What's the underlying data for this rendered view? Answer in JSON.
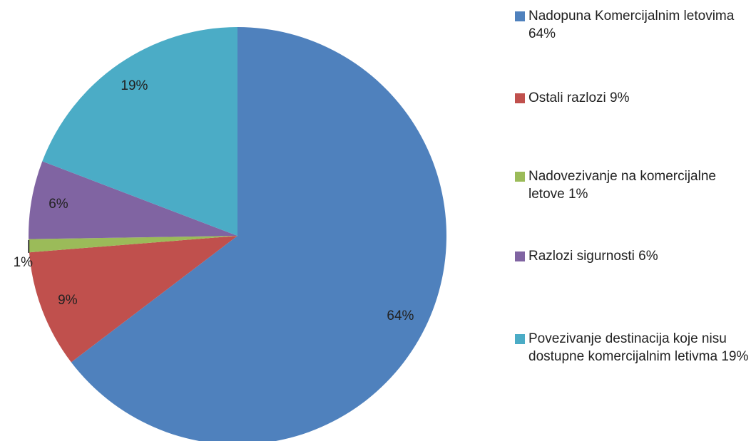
{
  "chart_data": {
    "type": "pie",
    "categories": [
      "Nadopuna Komercijalnim letovima 64%",
      "Ostali razlozi 9%",
      "Nadovezivanje na komercijalne letove 1%",
      "Razlozi sigurnosti 6%",
      "Povezivanje destinacija koje nisu dostupne komercijalnim letivma 19%"
    ],
    "values": [
      64,
      9,
      1,
      6,
      19
    ],
    "value_labels": [
      "64%",
      "9%",
      "1%",
      "6%",
      "19%"
    ],
    "colors": [
      "#4f81bd",
      "#c0504d",
      "#9bbb59",
      "#8064a2",
      "#4bacc6"
    ],
    "legend": "right"
  }
}
